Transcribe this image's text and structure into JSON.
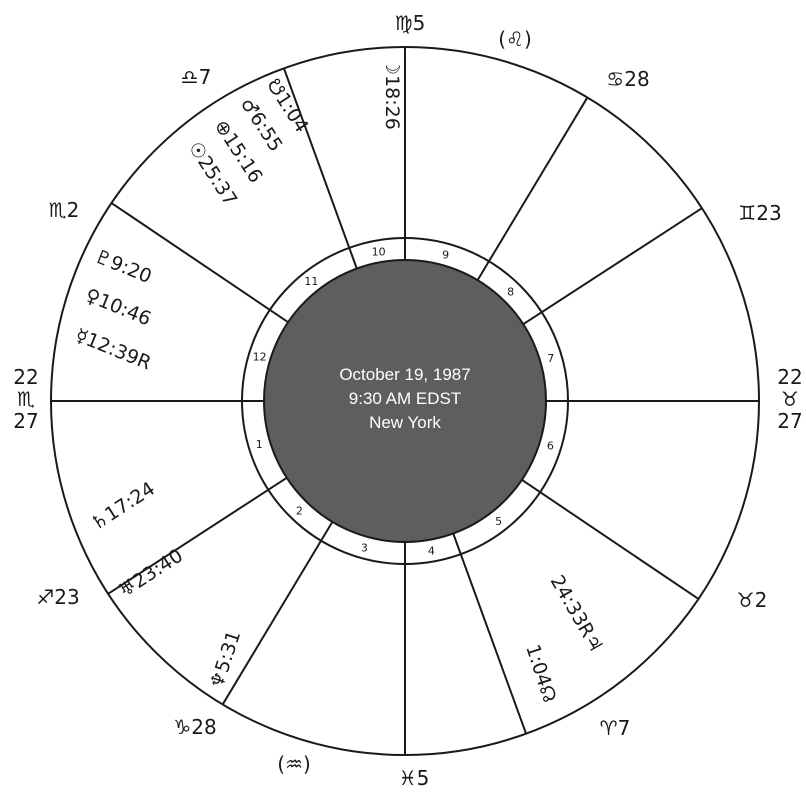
{
  "chart": {
    "center_lines": [
      "October 19, 1987",
      "9:30 AM EDST",
      "New York"
    ],
    "colors": {
      "ink": "#1a1a1a",
      "center_fill": "#5e5e5e",
      "center_text": "#ffffff"
    }
  },
  "cusp_angles_deg": [
    180,
    213,
    239,
    270,
    290,
    326,
    0,
    33,
    59,
    90,
    110,
    146
  ],
  "house_numbers": [
    "1",
    "2",
    "3",
    "4",
    "5",
    "6",
    "7",
    "8",
    "9",
    "10",
    "11",
    "12"
  ],
  "cusp_labels": [
    {
      "text": "♍5"
    },
    {
      "text": "(♌)"
    },
    {
      "text": "♋28"
    },
    {
      "text": "♊23"
    },
    {
      "text": "♉2"
    },
    {
      "text": "♈7"
    },
    {
      "text": "♓5"
    },
    {
      "text": "(♒)"
    },
    {
      "text": "♑28"
    },
    {
      "text": "♐23"
    },
    {
      "text": "♏2"
    },
    {
      "text": "♎7"
    }
  ],
  "asc_label": {
    "top": "22",
    "sign": "♏",
    "bottom": "27"
  },
  "desc_label": {
    "top": "22",
    "sign": "♉",
    "bottom": "27"
  },
  "planets": [
    {
      "text": "☽18:26"
    },
    {
      "text": "☋1:04"
    },
    {
      "text": "♂6:55"
    },
    {
      "text": "⊕15:16"
    },
    {
      "text": "☉25:37"
    },
    {
      "text": "♇9:20"
    },
    {
      "text": "♀10:46"
    },
    {
      "text": "☿12:39R"
    },
    {
      "text": "♄17:24"
    },
    {
      "text": "♅23:40"
    },
    {
      "text": "♆5:31"
    },
    {
      "text": "24:33R♃"
    },
    {
      "text": "1:04☊"
    }
  ]
}
